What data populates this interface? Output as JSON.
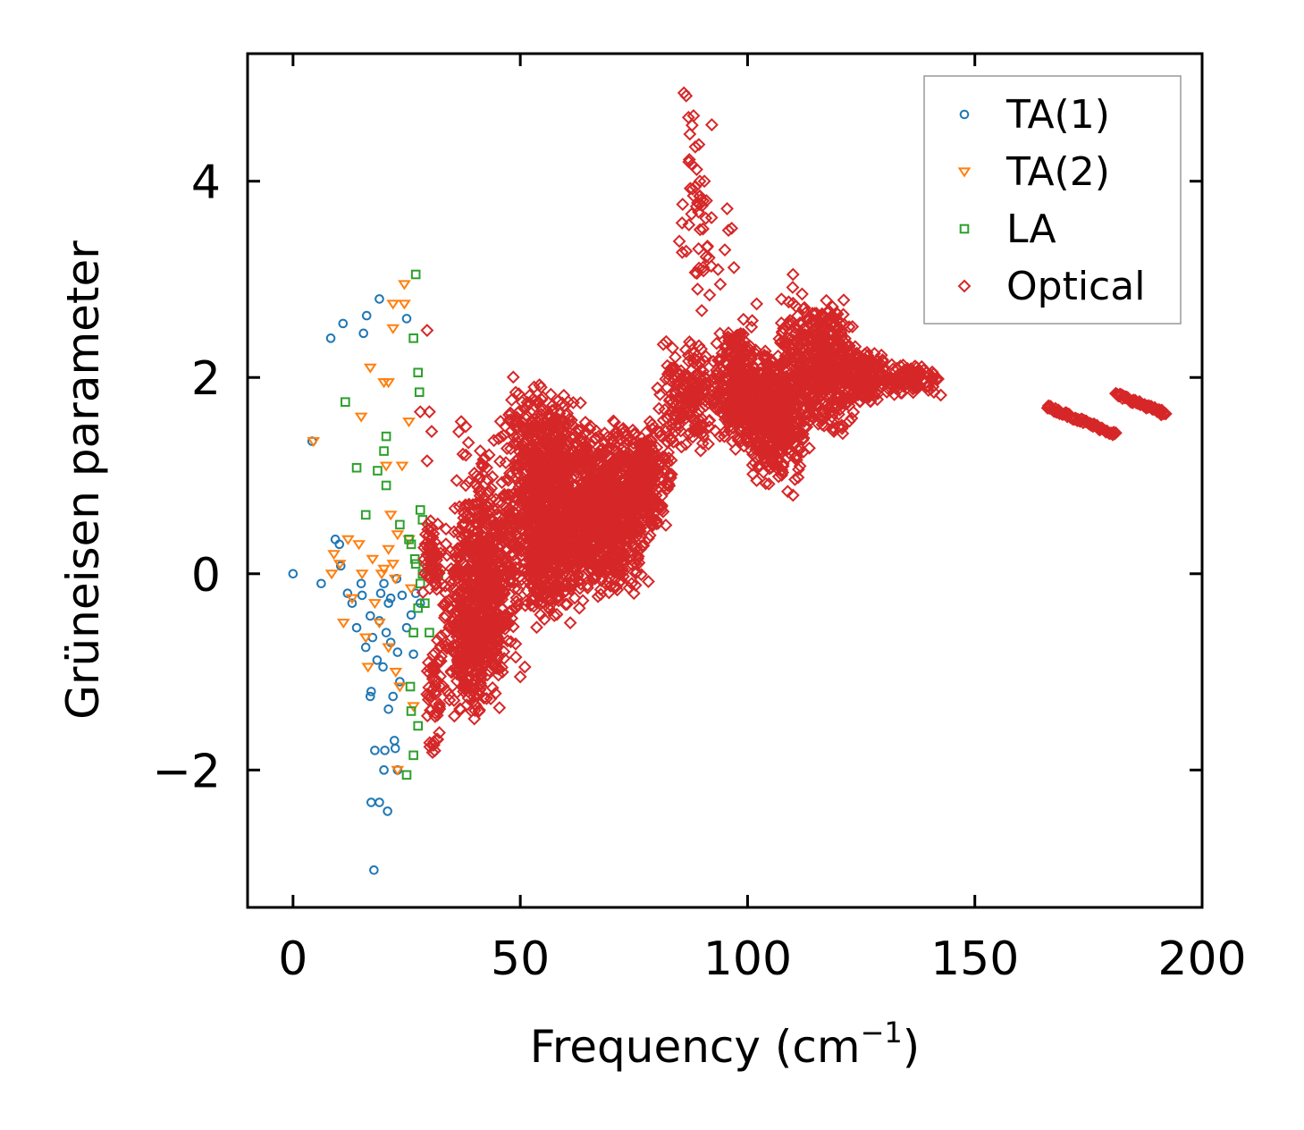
{
  "chart_data": {
    "type": "scatter",
    "title": "",
    "xlabel": "Frequency (cm",
    "xlabel_sup": "−1",
    "xlabel_close": ")",
    "ylabel": "Grüneisen parameter",
    "xlim": [
      -10,
      200
    ],
    "ylim": [
      -3.4,
      5.3
    ],
    "xticks": [
      0,
      50,
      100,
      150,
      200
    ],
    "xtick_labels": [
      "0",
      "50",
      "100",
      "150",
      "200"
    ],
    "yticks": [
      -2,
      0,
      2,
      4
    ],
    "ytick_labels": [
      "−2",
      "0",
      "2",
      "4"
    ],
    "grid": false,
    "legend_position": "top-right",
    "series": [
      {
        "name": "TA(1)",
        "marker": "circle",
        "color": "#1f77b4",
        "points": [
          [
            0,
            0
          ],
          [
            4.2,
            1.35
          ],
          [
            6.2,
            -0.1
          ],
          [
            8.3,
            2.4
          ],
          [
            11,
            2.55
          ],
          [
            9.3,
            0.35
          ],
          [
            10.2,
            0.3
          ],
          [
            10.5,
            0.08
          ],
          [
            12,
            -0.2
          ],
          [
            13,
            -0.3
          ],
          [
            14,
            -0.55
          ],
          [
            15,
            -0.1
          ],
          [
            15.2,
            -0.22
          ],
          [
            15.5,
            2.45
          ],
          [
            16,
            -0.75
          ],
          [
            16.2,
            2.63
          ],
          [
            17,
            -0.43
          ],
          [
            17,
            -1.25
          ],
          [
            17.2,
            -1.2
          ],
          [
            17.5,
            -0.65
          ],
          [
            17.8,
            -3.02
          ],
          [
            17.2,
            -2.33
          ],
          [
            18,
            -1.8
          ],
          [
            18.5,
            -0.88
          ],
          [
            19,
            2.8
          ],
          [
            19,
            -0.48
          ],
          [
            19,
            -2.33
          ],
          [
            19.3,
            -0.2
          ],
          [
            19.8,
            -0.95
          ],
          [
            20,
            -2.0
          ],
          [
            20,
            -0.1
          ],
          [
            20.2,
            -1.8
          ],
          [
            20.5,
            -0.6
          ],
          [
            20.8,
            -2.42
          ],
          [
            21,
            -0.3
          ],
          [
            21,
            -1.38
          ],
          [
            21.5,
            -0.25
          ],
          [
            22,
            -1.25
          ],
          [
            22.5,
            -1.78
          ],
          [
            22.3,
            -1.7
          ],
          [
            23,
            -0.8
          ],
          [
            23,
            -2.0
          ],
          [
            23.5,
            -1.1
          ],
          [
            24,
            -0.22
          ],
          [
            25,
            2.6
          ],
          [
            25,
            -0.55
          ],
          [
            26,
            -0.42
          ],
          [
            26.5,
            -0.82
          ],
          [
            27,
            -0.2
          ],
          [
            28,
            -0.3
          ],
          [
            22.8,
            -0.05
          ],
          [
            21.5,
            -0.7
          ]
        ]
      },
      {
        "name": "TA(2)",
        "marker": "triangle-down",
        "color": "#ff7f0e",
        "points": [
          [
            4.5,
            1.35
          ],
          [
            8.5,
            0.0
          ],
          [
            9.0,
            0.2
          ],
          [
            10.3,
            0.1
          ],
          [
            11.1,
            -0.5
          ],
          [
            12.1,
            0.35
          ],
          [
            13.0,
            -0.25
          ],
          [
            14.5,
            0.3
          ],
          [
            15.0,
            1.6
          ],
          [
            15.2,
            0.0
          ],
          [
            16.0,
            -0.65
          ],
          [
            16.5,
            -0.95
          ],
          [
            17.0,
            2.1
          ],
          [
            17.5,
            0.15
          ],
          [
            18.0,
            -0.3
          ],
          [
            19.0,
            -0.5
          ],
          [
            19.5,
            0.0
          ],
          [
            20.0,
            1.95
          ],
          [
            20.5,
            1.1
          ],
          [
            21.0,
            0.25
          ],
          [
            21.0,
            -0.75
          ],
          [
            21.5,
            0.6
          ],
          [
            22.0,
            2.75
          ],
          [
            22.0,
            2.5
          ],
          [
            22.5,
            -0.05
          ],
          [
            22.6,
            -1.0
          ],
          [
            23.0,
            0.4
          ],
          [
            23.5,
            -1.15
          ],
          [
            24.0,
            1.1
          ],
          [
            24.5,
            2.95
          ],
          [
            24.5,
            2.75
          ],
          [
            25.5,
            1.55
          ],
          [
            25.5,
            0.35
          ],
          [
            26.0,
            -0.15
          ],
          [
            26.5,
            -1.35
          ],
          [
            23.0,
            -2.0
          ],
          [
            20.0,
            0.05
          ],
          [
            21.0,
            1.95
          ],
          [
            22.0,
            0.1
          ]
        ]
      },
      {
        "name": "LA",
        "marker": "square",
        "color": "#2ca02c",
        "points": [
          [
            11.5,
            1.75
          ],
          [
            14.0,
            1.08
          ],
          [
            16.0,
            0.6
          ],
          [
            18.6,
            1.05
          ],
          [
            20.0,
            1.25
          ],
          [
            20.5,
            1.4
          ],
          [
            20.5,
            0.9
          ],
          [
            23.5,
            0.5
          ],
          [
            25.0,
            -2.05
          ],
          [
            25.5,
            0.35
          ],
          [
            25.8,
            -1.15
          ],
          [
            26.0,
            0.3
          ],
          [
            26.0,
            -1.4
          ],
          [
            26.5,
            2.4
          ],
          [
            26.5,
            -0.6
          ],
          [
            27.0,
            3.05
          ],
          [
            27.0,
            0.1
          ],
          [
            27.5,
            2.05
          ],
          [
            27.5,
            -0.35
          ],
          [
            27.5,
            -1.55
          ],
          [
            27.8,
            1.85
          ],
          [
            28.0,
            0.65
          ],
          [
            28.0,
            -0.1
          ],
          [
            28.5,
            0.55
          ],
          [
            28.5,
            0.0
          ],
          [
            29.0,
            -0.3
          ],
          [
            29.5,
            0.05
          ],
          [
            30.0,
            -0.6
          ],
          [
            31.0,
            0.05
          ],
          [
            32.0,
            0.0
          ],
          [
            26.5,
            -1.85
          ],
          [
            26.8,
            0.15
          ]
        ]
      },
      {
        "name": "Optical",
        "marker": "diamond",
        "color": "#d62728",
        "clusters": [
          {
            "x": [
              28,
              33
            ],
            "y": [
              -0.3,
              0.6
            ],
            "n": 60
          },
          {
            "x": [
              29,
              33
            ],
            "y": [
              -1.9,
              -0.6
            ],
            "n": 50
          },
          {
            "x": [
              32,
              47
            ],
            "y": [
              -1.5,
              0.5
            ],
            "n": 550
          },
          {
            "x": [
              35,
              46
            ],
            "y": [
              -0.6,
              1.6
            ],
            "n": 150
          },
          {
            "x": [
              40,
              50
            ],
            "y": [
              -1.1,
              0.8
            ],
            "n": 180
          },
          {
            "x": [
              45,
              62
            ],
            "y": [
              -0.6,
              2.1
            ],
            "n": 620
          },
          {
            "x": [
              50,
              65
            ],
            "y": [
              -0.5,
              1.9
            ],
            "n": 420
          },
          {
            "x": [
              57,
              73
            ],
            "y": [
              -0.3,
              1.6
            ],
            "n": 580
          },
          {
            "x": [
              65,
              80
            ],
            "y": [
              -0.2,
              1.6
            ],
            "n": 420
          },
          {
            "x": [
              72,
              84
            ],
            "y": [
              0.4,
              1.5
            ],
            "n": 240
          },
          {
            "x": [
              80,
              96
            ],
            "y": [
              1.2,
              2.4
            ],
            "n": 220
          },
          {
            "x": [
              84,
              93
            ],
            "y": [
              2.5,
              4.9
            ],
            "n": 40
          },
          {
            "x": [
              93,
              104
            ],
            "y": [
              1.2,
              2.6
            ],
            "n": 330
          },
          {
            "x": [
              100,
              110
            ],
            "y": [
              0.9,
              2.3
            ],
            "n": 380
          },
          {
            "x": [
              106,
              114
            ],
            "y": [
              0.8,
              3.0
            ],
            "n": 220
          },
          {
            "x": [
              110,
              124
            ],
            "y": [
              1.4,
              2.8
            ],
            "n": 420
          },
          {
            "x": [
              120,
              132
            ],
            "y": [
              1.7,
              2.3
            ],
            "n": 170
          },
          {
            "x": [
              128,
              143
            ],
            "y": [
              1.8,
              2.2
            ],
            "n": 110
          }
        ],
        "lines": [
          {
            "from": [
              166,
              1.7
            ],
            "to": [
              181,
              1.42
            ],
            "n": 70
          },
          {
            "from": [
              181,
              1.83
            ],
            "to": [
              192,
              1.63
            ],
            "n": 60
          }
        ],
        "points": [
          [
            86,
            4.9
          ],
          [
            86.5,
            4.87
          ],
          [
            87,
            4.65
          ],
          [
            87.8,
            4.57
          ],
          [
            87.3,
            4.48
          ],
          [
            88.5,
            4.35
          ],
          [
            88.8,
            4.12
          ],
          [
            89.5,
            4.0
          ],
          [
            90.5,
            4.0
          ],
          [
            89,
            3.78
          ],
          [
            90,
            3.75
          ],
          [
            89.5,
            3.85
          ],
          [
            95.5,
            3.72
          ],
          [
            95.8,
            3.5
          ],
          [
            96.5,
            3.52
          ],
          [
            95,
            3.3
          ],
          [
            93.5,
            3.1
          ],
          [
            94,
            2.95
          ],
          [
            97,
            3.12
          ],
          [
            88.5,
            3.07
          ],
          [
            89,
            2.9
          ],
          [
            102,
            2.75
          ],
          [
            110,
            3.05
          ],
          [
            112,
            2.85
          ],
          [
            29.5,
            2.48
          ],
          [
            30,
            1.65
          ],
          [
            28,
            1.65
          ],
          [
            30.5,
            1.45
          ],
          [
            29.5,
            1.15
          ],
          [
            37,
            1.55
          ],
          [
            38,
            1.5
          ],
          [
            47.5,
            1.62
          ],
          [
            36,
            0.95
          ],
          [
            38,
            0.9
          ],
          [
            83.5,
            2.3
          ],
          [
            86,
            1.93
          ],
          [
            84.5,
            2.05
          ],
          [
            102,
            0.95
          ],
          [
            104,
            0.92
          ],
          [
            110,
            0.8
          ],
          [
            78.5,
            1.55
          ],
          [
            73,
            1.45
          ],
          [
            79,
            1.52
          ],
          [
            96.5,
            2.0
          ],
          [
            99,
            1.85
          ],
          [
            116,
            1.82
          ],
          [
            117,
            1.65
          ],
          [
            118.5,
            1.55
          ],
          [
            119,
            1.45
          ],
          [
            121,
            1.5
          ],
          [
            35.5,
            -1.45
          ],
          [
            37.5,
            -1.2
          ],
          [
            43.5,
            -0.9
          ],
          [
            49,
            -0.85
          ],
          [
            50,
            -1.05
          ],
          [
            51,
            -0.95
          ],
          [
            61,
            -0.5
          ],
          [
            63,
            -0.35
          ],
          [
            68,
            -0.05
          ],
          [
            74.5,
            -0.1
          ],
          [
            75,
            -0.2
          ],
          [
            191,
            1.62
          ],
          [
            141,
            1.85
          ],
          [
            142.5,
            1.82
          ]
        ]
      }
    ]
  }
}
